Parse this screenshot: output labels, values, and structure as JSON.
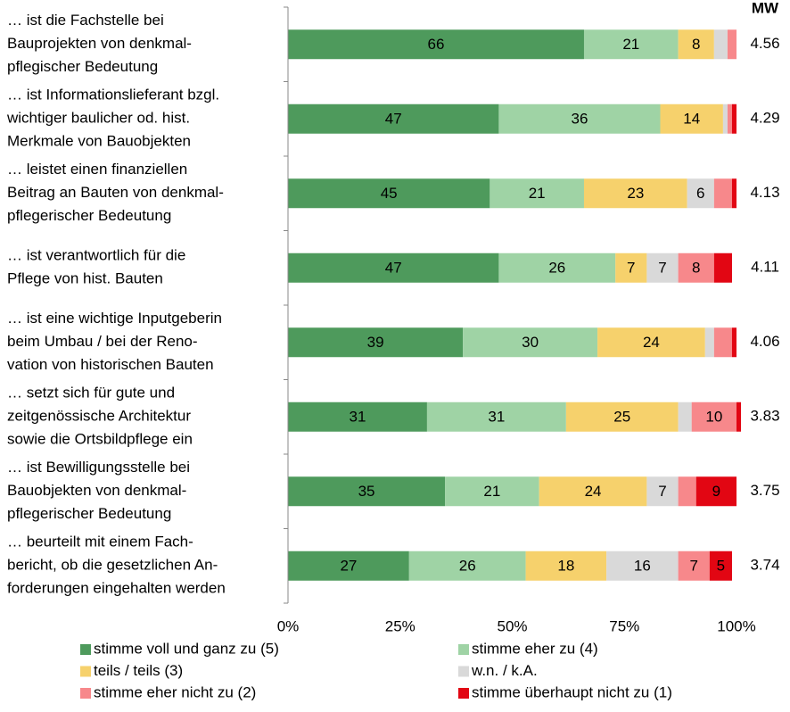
{
  "chart_data": {
    "type": "stacked-bar-horizontal",
    "categories": [
      [
        "… ist die Fachstelle bei",
        "Bauprojekten von denkmal-",
        "pflegischer Bedeutung"
      ],
      [
        "… ist Informationslieferant bzgl.",
        "wichtiger baulicher od. hist.",
        "Merkmale von Bauobjekten"
      ],
      [
        "… leistet einen finanziellen",
        "Beitrag an Bauten von denkmal-",
        "pflegerischer Bedeutung"
      ],
      [
        "… ist verantwortlich für die",
        "Pflege von hist. Bauten"
      ],
      [
        "… ist eine wichtige Inputgeberin",
        "beim Umbau / bei der Reno-",
        "vation von historischen Bauten"
      ],
      [
        "… setzt sich für gute und",
        "zeitgenössische Architektur",
        "sowie die Ortsbildpflege ein"
      ],
      [
        "… ist Bewilligungsstelle bei",
        "Bauobjekten von denkmal-",
        "pflegerischer Bedeutung"
      ],
      [
        "… beurteilt mit einem Fach-",
        "bericht, ob die gesetzlichen An-",
        "forderungen eingehalten werden"
      ]
    ],
    "series": [
      {
        "name": "stimme voll und ganz zu (5)",
        "color": "#4e9a5c",
        "values": [
          66,
          47,
          45,
          47,
          39,
          31,
          35,
          27
        ]
      },
      {
        "name": "stimme eher zu (4)",
        "color": "#9fd3a5",
        "values": [
          21,
          36,
          21,
          26,
          30,
          31,
          21,
          26
        ]
      },
      {
        "name": "teils / teils (3)",
        "color": "#f6d16c",
        "values": [
          8,
          14,
          23,
          7,
          24,
          25,
          24,
          18
        ]
      },
      {
        "name": "w.n. / k.A.",
        "color": "#d9d9d9",
        "values": [
          3,
          1,
          6,
          7,
          2,
          3,
          7,
          16
        ]
      },
      {
        "name": "stimme eher nicht zu (2)",
        "color": "#f7888b",
        "values": [
          2,
          1,
          4,
          8,
          4,
          10,
          4,
          7
        ]
      },
      {
        "name": "stimme überhaupt nicht zu (1)",
        "color": "#e20613",
        "values": [
          0,
          1,
          1,
          4,
          1,
          1,
          9,
          5
        ]
      }
    ],
    "mw_label": "MW",
    "mw": [
      4.56,
      4.29,
      4.13,
      4.11,
      4.06,
      3.83,
      3.75,
      3.74
    ],
    "xlim": [
      0,
      100
    ],
    "xticks": [
      {
        "value": 0,
        "label": "0%"
      },
      {
        "value": 25,
        "label": "25%"
      },
      {
        "value": 50,
        "label": "50%"
      },
      {
        "value": 75,
        "label": "75%"
      },
      {
        "value": 100,
        "label": "100%"
      }
    ]
  }
}
